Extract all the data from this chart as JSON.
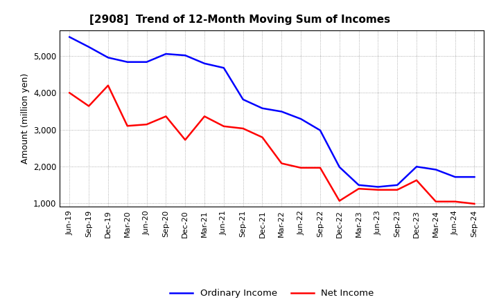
{
  "title": "[2908]  Trend of 12-Month Moving Sum of Incomes",
  "ylabel": "Amount (million yen)",
  "background_color": "#ffffff",
  "plot_bg_color": "#ffffff",
  "grid_color": "#999999",
  "x_labels": [
    "Jun-19",
    "Sep-19",
    "Dec-19",
    "Mar-20",
    "Jun-20",
    "Sep-20",
    "Dec-20",
    "Mar-21",
    "Jun-21",
    "Sep-21",
    "Dec-21",
    "Mar-22",
    "Jun-22",
    "Sep-22",
    "Dec-22",
    "Mar-23",
    "Jun-23",
    "Sep-23",
    "Dec-23",
    "Mar-24",
    "Jun-24",
    "Sep-24"
  ],
  "ordinary_income": [
    5520,
    5250,
    4960,
    4840,
    4840,
    5060,
    5020,
    4800,
    4680,
    3820,
    3580,
    3490,
    3290,
    2980,
    1980,
    1490,
    1440,
    1490,
    1990,
    1910,
    1710,
    1710
  ],
  "net_income": [
    4000,
    3640,
    4200,
    3100,
    3140,
    3360,
    2720,
    3360,
    3090,
    3030,
    2790,
    2080,
    1960,
    1960,
    1060,
    1390,
    1360,
    1360,
    1620,
    1040,
    1040,
    980
  ],
  "ordinary_color": "#0000ff",
  "net_color": "#ff0000",
  "line_width": 1.8,
  "ylim": [
    900,
    5700
  ],
  "yticks": [
    1000,
    2000,
    3000,
    4000,
    5000
  ],
  "legend_labels": [
    "Ordinary Income",
    "Net Income"
  ]
}
